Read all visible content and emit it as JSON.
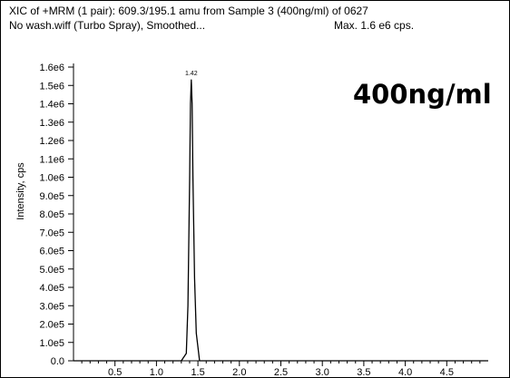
{
  "header": {
    "line1": "XIC of +MRM (1 pair): 609.3/195.1 amu from Sample 3 (400ng/ml) of 0627",
    "line2": "No wash.wiff (Turbo Spray), Smoothed...",
    "max_label": "Max. 1.6 e6 cps."
  },
  "chart_data": {
    "type": "line",
    "big_label": "400ng/ml",
    "ylabel": "Intensity, cps",
    "xlabel": "",
    "xlim": [
      0.0,
      5.0
    ],
    "ylim": [
      0,
      1600000
    ],
    "x_ticks": [
      0.5,
      1.0,
      1.5,
      2.0,
      2.5,
      3.0,
      3.5,
      4.0,
      4.5
    ],
    "x_tick_labels": [
      "0.5",
      "1.0",
      "1.5",
      "2.0",
      "2.5",
      "3.0",
      "3.5",
      "4.0",
      "4.5"
    ],
    "y_ticks": [
      0,
      100000,
      200000,
      300000,
      400000,
      500000,
      600000,
      700000,
      800000,
      900000,
      1000000,
      1100000,
      1200000,
      1300000,
      1400000,
      1500000,
      1600000
    ],
    "y_tick_labels": [
      "0.0",
      "1.0e5",
      "2.0e5",
      "3.0e5",
      "4.0e5",
      "5.0e5",
      "6.0e5",
      "7.0e5",
      "8.0e5",
      "9.0e5",
      "1.0e6",
      "1.1e6",
      "1.2e6",
      "1.3e6",
      "1.4e6",
      "1.5e6",
      "1.6e6"
    ],
    "grid": false,
    "peak_label": "1.42",
    "series": [
      {
        "color": "#000000",
        "x": [
          0.0,
          1.3,
          1.36,
          1.38,
          1.4,
          1.41,
          1.42,
          1.43,
          1.44,
          1.46,
          1.48,
          1.52,
          5.0
        ],
        "y": [
          0,
          0,
          40000,
          300000,
          1000000,
          1400000,
          1530000,
          1400000,
          1000000,
          450000,
          150000,
          0,
          0
        ]
      }
    ]
  }
}
